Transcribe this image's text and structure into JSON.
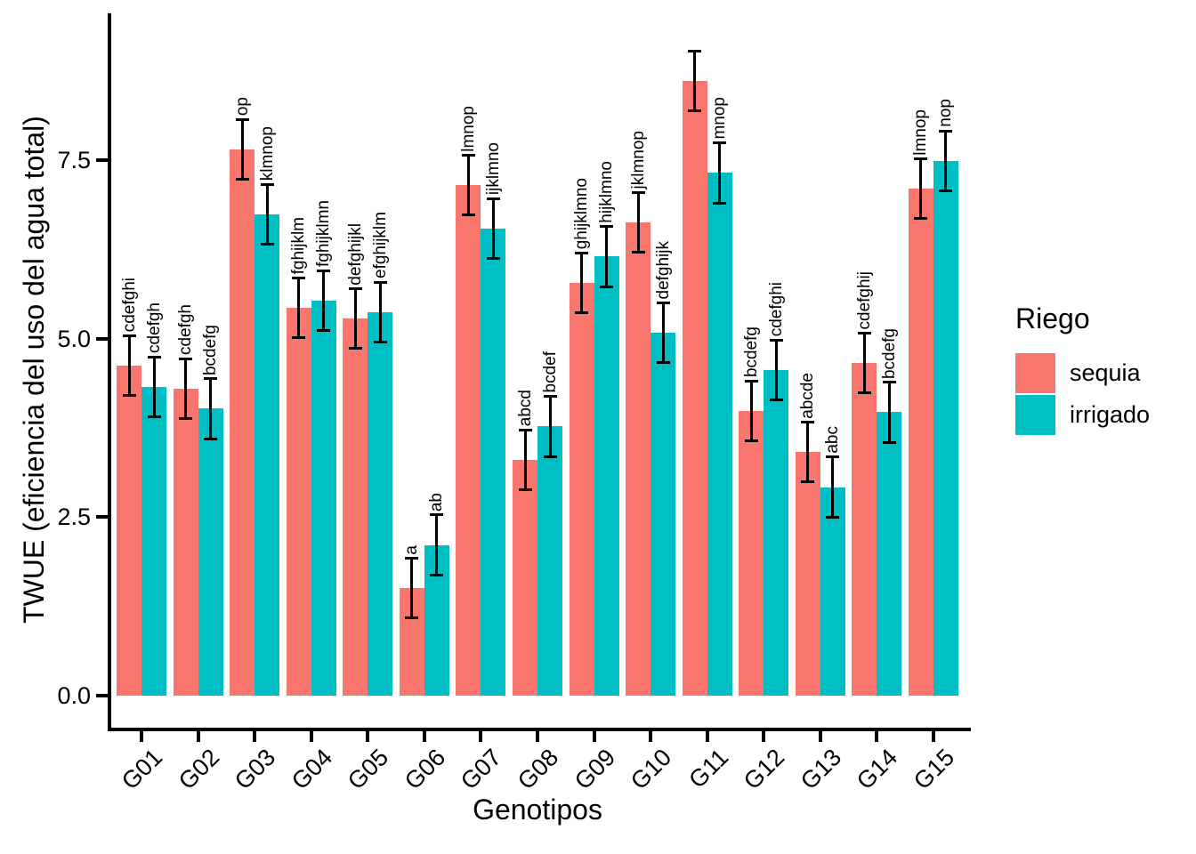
{
  "chart_data": {
    "type": "bar",
    "title": "",
    "xlabel": "Genotipos",
    "ylabel": "TWUE (eficiencia del uso del agua total)",
    "categories": [
      "G01",
      "G02",
      "G03",
      "G04",
      "G05",
      "G06",
      "G07",
      "G08",
      "G09",
      "G10",
      "G11",
      "G12",
      "G13",
      "G14",
      "G15"
    ],
    "series": [
      {
        "name": "sequia",
        "color": "#F8766D",
        "values": [
          4.62,
          4.3,
          7.65,
          5.43,
          5.28,
          1.51,
          7.15,
          3.3,
          5.78,
          6.63,
          8.61,
          3.99,
          3.41,
          4.66,
          7.1
        ],
        "sig_labels": [
          "cdefghi",
          "cdefgh",
          "op",
          "fghijklm",
          "defghijkl",
          "a",
          "lmnop",
          "abcd",
          "ghijklmno",
          "jklmnop",
          "",
          "bcdefg",
          "abcde",
          "cdefghij",
          "lmnop"
        ]
      },
      {
        "name": "irrigado",
        "color": "#00BFC4",
        "values": [
          4.32,
          4.02,
          6.74,
          5.53,
          5.37,
          2.11,
          6.54,
          3.77,
          6.15,
          5.08,
          7.32,
          4.56,
          2.92,
          3.97,
          7.49
        ],
        "sig_labels": [
          "cdefgh",
          "bcdefg",
          "klmnop",
          "fghijklmn",
          "efghijklm",
          "ab",
          "ijklmno",
          "bcdef",
          "hijklmno",
          "defghijk",
          "mnop",
          "cdefghi",
          "abc",
          "bcdefg",
          "nop"
        ]
      }
    ],
    "error_bar": 0.42,
    "yticks": [
      0.0,
      2.5,
      5.0,
      7.5
    ],
    "ytick_labels": [
      "0.0",
      "2.5",
      "5.0",
      "7.5"
    ],
    "ylim": [
      -0.45,
      9.55
    ],
    "grid": false,
    "axis_color": "#000000",
    "background": "#FFFFFF",
    "legend": {
      "title": "Riego",
      "position": "right"
    }
  }
}
